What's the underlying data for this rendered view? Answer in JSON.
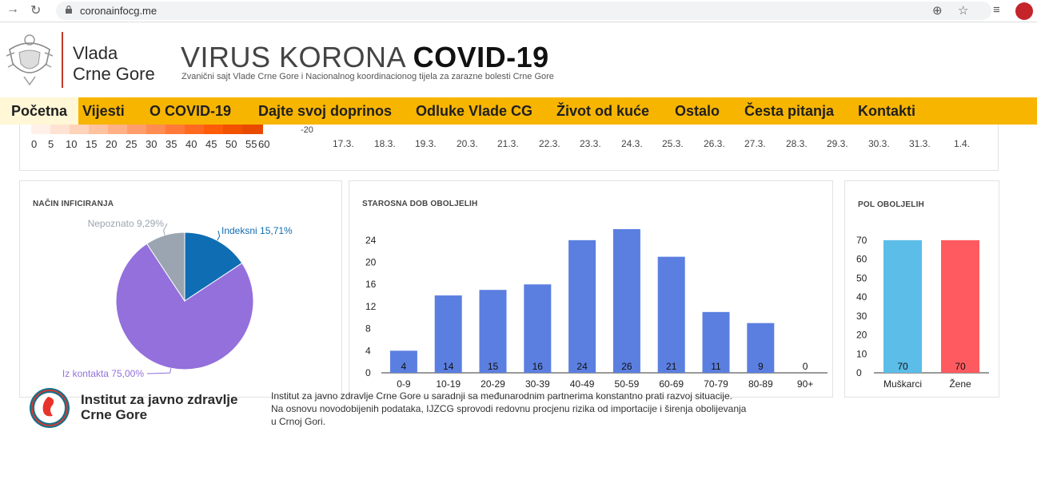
{
  "browser": {
    "url": "coronainfocg.me"
  },
  "header": {
    "vlada_line1": "Vlada",
    "vlada_line2": "Crne Gore",
    "title_thin": "VIRUS KORONA",
    "title_bold": "COVID-19",
    "subtitle": "Zvanični sajt Vlade Crne Gore i Nacionalnog koordinacionog tijela za zarazne bolesti Crne Gore"
  },
  "menu": [
    {
      "label": "Početna",
      "active": true
    },
    {
      "label": "Vijesti"
    },
    {
      "label": "O COVID-19"
    },
    {
      "label": "Dajte svoj doprinos"
    },
    {
      "label": "Odluke Vlade CG"
    },
    {
      "label": "Život od kuće"
    },
    {
      "label": "Ostalo"
    },
    {
      "label": "Česta pitanja"
    },
    {
      "label": "Kontakti"
    }
  ],
  "top_strip": {
    "scale_labels": [
      "0",
      "5",
      "10",
      "15",
      "20",
      "25",
      "30",
      "35",
      "40",
      "45",
      "50",
      "55",
      "60"
    ],
    "neg_label": "-20",
    "dates": [
      "17.3.",
      "18.3.",
      "19.3.",
      "20.3.",
      "21.3.",
      "22.3.",
      "23.3.",
      "24.3.",
      "25.3.",
      "26.3.",
      "27.3.",
      "28.3.",
      "29.3.",
      "30.3.",
      "31.3.",
      "1.4."
    ]
  },
  "pie_card": {
    "title": "NAČIN INFICIRANJA"
  },
  "age_card": {
    "title": "STAROSNA DOB OBOLJELIH"
  },
  "sex_card": {
    "title": "POL OBOLJELIH"
  },
  "chart_data": [
    {
      "type": "pie",
      "title": "NAČIN INFICIRANJA",
      "slices": [
        {
          "name": "Indeksni 15,71%",
          "value": 15.71,
          "color": "#0f6db3"
        },
        {
          "name": "Iz kontakta 75,00%",
          "value": 75.0,
          "color": "#9370db"
        },
        {
          "name": "Nepoznato 9,29%",
          "value": 9.29,
          "color": "#9aa5b1"
        }
      ]
    },
    {
      "type": "bar",
      "title": "STAROSNA DOB OBOLJELIH",
      "categories": [
        "0-9",
        "10-19",
        "20-29",
        "30-39",
        "40-49",
        "50-59",
        "60-69",
        "70-79",
        "80-89",
        "90+"
      ],
      "values": [
        4,
        14,
        15,
        16,
        24,
        26,
        21,
        11,
        9,
        0
      ],
      "yticks": [
        0,
        4,
        8,
        12,
        16,
        20,
        24
      ],
      "ylim": [
        0,
        26
      ],
      "color": "#5b7fe0"
    },
    {
      "type": "bar",
      "title": "POL OBOLJELIH",
      "categories": [
        "Muškarci",
        "Žene"
      ],
      "values": [
        70,
        70
      ],
      "colors": [
        "#5bbde8",
        "#ff5a5f"
      ],
      "yticks": [
        0,
        10,
        20,
        30,
        40,
        50,
        60,
        70
      ],
      "ylim": [
        0,
        75
      ]
    }
  ],
  "footer": {
    "ijz_line1": "Institut za javno zdravlje",
    "ijz_line2": "Crne Gore",
    "desc_line1": "Institut za javno zdravlje Crne Gore u saradnji sa međunarodnim partnerima konstantno prati razvoj situacije.",
    "desc_line2": "Na osnovu novodobijenih podataka, IJZCG sprovodi redovnu procjenu rizika od importacije i širenja obolijevanja",
    "desc_line3": "u Crnoj Gori."
  }
}
